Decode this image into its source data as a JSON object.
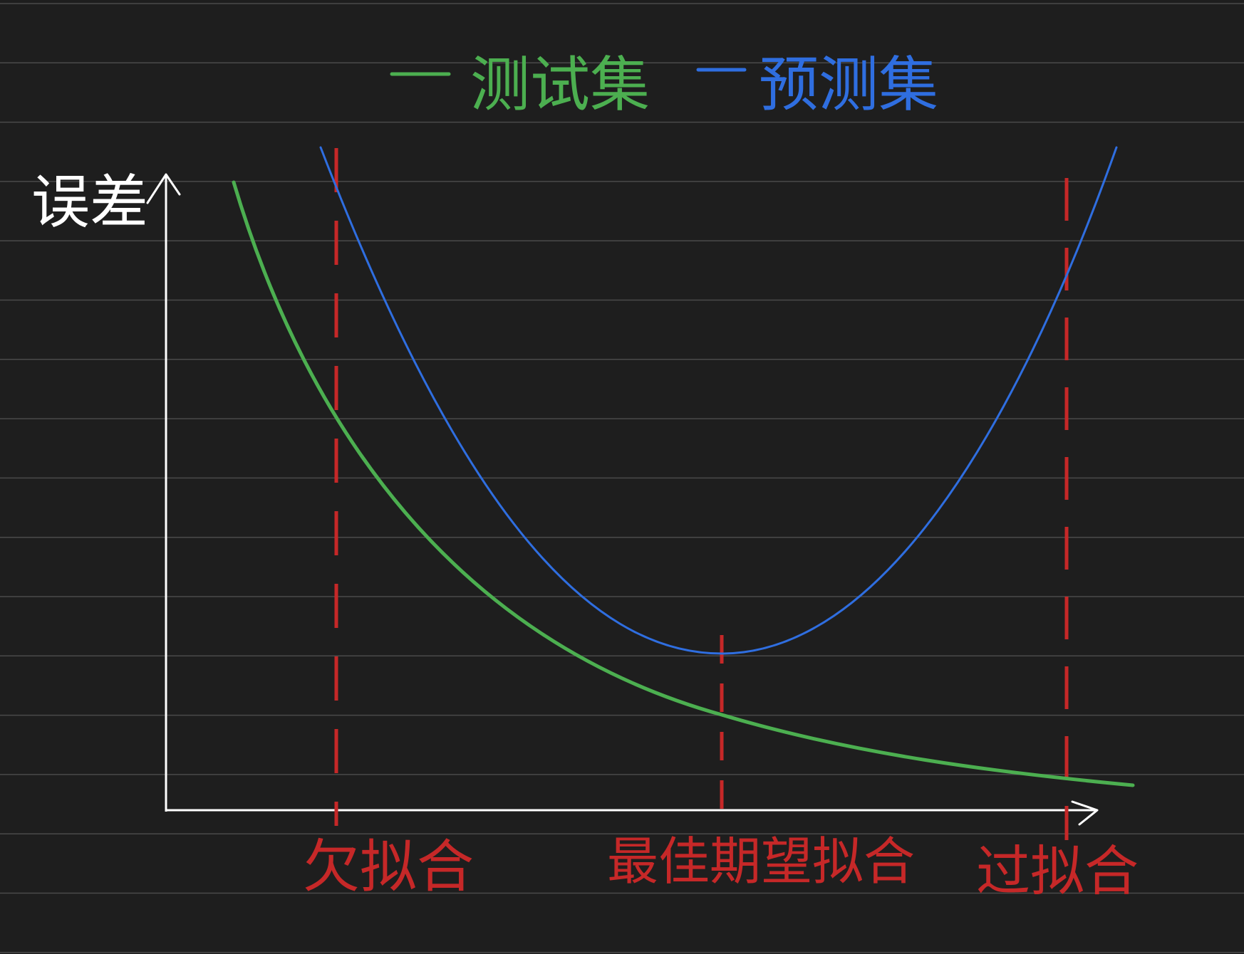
{
  "legend": {
    "items": [
      {
        "label": "测试集",
        "color": "#4caf50"
      },
      {
        "label": "预测集",
        "color": "#2f6ee0"
      }
    ]
  },
  "axes": {
    "y_label": "误差",
    "axis_color": "#ffffff"
  },
  "regions": [
    {
      "label": "欠拟合",
      "color": "#c62828"
    },
    {
      "label": "最佳期望拟合",
      "color": "#c62828"
    },
    {
      "label": "过拟合",
      "color": "#c62828"
    }
  ],
  "colors": {
    "background": "#1e1e1e",
    "ruled_line": "#4a4a4a",
    "dashed_marker": "#c62828"
  }
}
